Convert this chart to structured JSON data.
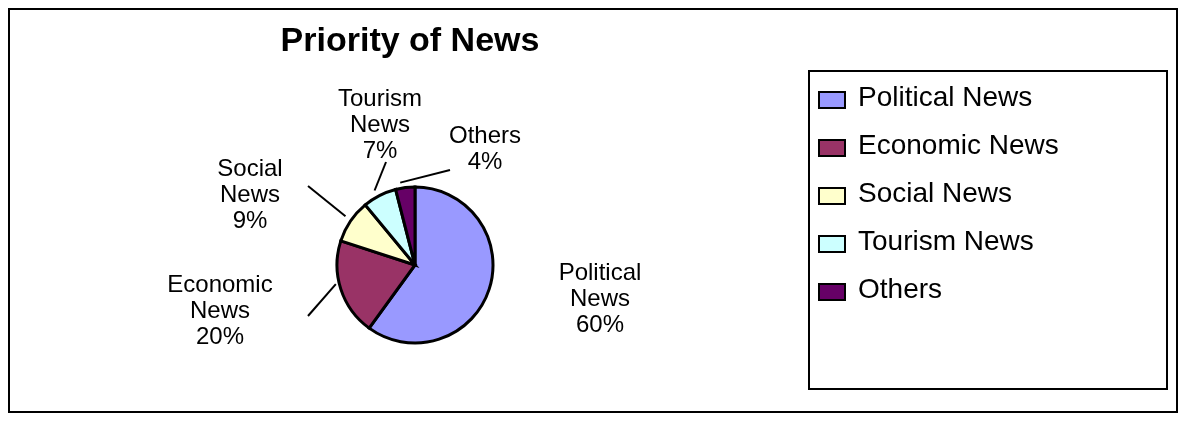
{
  "chart_data": {
    "type": "pie",
    "title": "Priority of News",
    "categories": [
      "Political News",
      "Economic News",
      "Social News",
      "Tourism News",
      "Others"
    ],
    "values": [
      60,
      20,
      9,
      7,
      4
    ],
    "value_labels": [
      "60%",
      "20%",
      "9%",
      "7%",
      "4%"
    ],
    "colors": [
      "#9999ff",
      "#993366",
      "#ffffcc",
      "#ccffff",
      "#660066"
    ],
    "legend": "right"
  }
}
